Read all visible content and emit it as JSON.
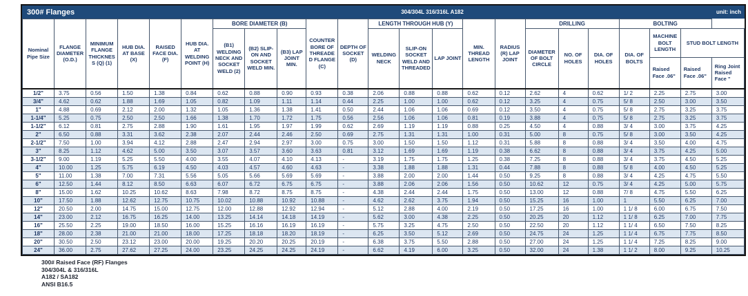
{
  "title_bar": {
    "title": "300# Flanges",
    "material": "304/304L 316/316L A182",
    "unit": "unit: inch"
  },
  "colors": {
    "title_bar_bg": "#1f4a7a",
    "header_text": "#1f3864",
    "row_stripe": "#dce6f1",
    "grid_border": "#44556b"
  },
  "table": {
    "groups": {
      "bore": "BORE DIAMETER (B)",
      "length_hub": "LENGTH THROUGH HUB (Y)",
      "drilling": "DRILLING",
      "bolting": "BOLTING"
    },
    "headers": {
      "pipe": "Nominal Pipe Size",
      "od": "FLANGE DIAMETER (O.D.)",
      "thickness": "MINIMUM FLANGE THICKNESS (Q) (1)",
      "hub_base": "HUB DIA. AT BASE (X)",
      "raised_face": "RAISED FACE DIA. (F)",
      "hub_weld": "HUB DIA. AT WELDING POINT (H)",
      "b1": "(B1) WELDING NECK AND SOCKET WELD (2)",
      "b2": "(B2) SLIP-ON AND SOCKET WELD MIN.",
      "b3": "(B3) LAP JOINT MIN.",
      "counter_bore": "COUNTER BORE OF THREADED FLANGE (C)",
      "depth_socket": "DEPTH OF SOCKET (D)",
      "welding_neck": "WELDING NECK",
      "slip_on": "SLIP-ON SOCKET WELD AND THREADED",
      "lap_joint": "LAP JOINT",
      "min_thread": "MIN. THREAD LENGTH",
      "radius": "RADIUS (R) LAP JOINT",
      "bolt_circle": "DIAMETER OF BOLT CIRCLE",
      "no_holes": "NO. OF HOLES",
      "dia_holes": "DIA. OF HOLES",
      "dia_bolts": "DIA. OF BOLTS",
      "machine_bolt": "MACHINE BOLT LENGTH",
      "stud_bolt": "STUD BOLT LENGTH",
      "machine_raised_face": "Raised Face .06\"",
      "stud_raised_face": "Raised Face .06\"",
      "stud_ring_joint": "Ring Joint Raised Face \""
    },
    "rows": [
      [
        "1/2\"",
        "3.75",
        "0.56",
        "1.50",
        "1.38",
        "0.84",
        "0.62",
        "0.88",
        "0.90",
        "0.93",
        "0.38",
        "2.06",
        "0.88",
        "0.88",
        "0.62",
        "0.12",
        "2.62",
        "4",
        "0.62",
        "1/ 2",
        "2.25",
        "2.75",
        "3.00"
      ],
      [
        "3/4\"",
        "4.62",
        "0.62",
        "1.88",
        "1.69",
        "1.05",
        "0.82",
        "1.09",
        "1.11",
        "1.14",
        "0.44",
        "2.25",
        "1.00",
        "1.00",
        "0.62",
        "0.12",
        "3.25",
        "4",
        "0.75",
        "5/ 8",
        "2.50",
        "3.00",
        "3.50"
      ],
      [
        "1\"",
        "4.88",
        "0.69",
        "2.12",
        "2.00",
        "1.32",
        "1.05",
        "1.36",
        "1.38",
        "1.41",
        "0.50",
        "2.44",
        "1.06",
        "1.06",
        "0.69",
        "0.12",
        "3.50",
        "4",
        "0.75",
        "5/ 8",
        "2.75",
        "3.25",
        "3.75"
      ],
      [
        "1-1/4\"",
        "5.25",
        "0.75",
        "2.50",
        "2.50",
        "1.66",
        "1.38",
        "1.70",
        "1.72",
        "1.75",
        "0.56",
        "2.56",
        "1.06",
        "1.06",
        "0.81",
        "0.19",
        "3.88",
        "4",
        "0.75",
        "5/ 8",
        "2.75",
        "3.25",
        "3.75"
      ],
      [
        "1-1/2\"",
        "6.12",
        "0.81",
        "2.75",
        "2.88",
        "1.90",
        "1.61",
        "1.95",
        "1.97",
        "1.99",
        "0.62",
        "2.69",
        "1.19",
        "1.19",
        "0.88",
        "0.25",
        "4.50",
        "4",
        "0.88",
        "3/ 4",
        "3.00",
        "3.75",
        "4.25"
      ],
      [
        "2\"",
        "6.50",
        "0.88",
        "3.31",
        "3.62",
        "2.38",
        "2.07",
        "2.44",
        "2.46",
        "2.50",
        "0.69",
        "2.75",
        "1.31",
        "1.31",
        "1.00",
        "0.31",
        "5.00",
        "8",
        "0.75",
        "5/ 8",
        "3.00",
        "3.50",
        "4.25"
      ],
      [
        "2-1/2\"",
        "7.50",
        "1.00",
        "3.94",
        "4.12",
        "2.88",
        "2.47",
        "2.94",
        "2.97",
        "3.00",
        "0.75",
        "3.00",
        "1.50",
        "1.50",
        "1.12",
        "0.31",
        "5.88",
        "8",
        "0.88",
        "3/ 4",
        "3.50",
        "4.00",
        "4.75"
      ],
      [
        "3\"",
        "8.25",
        "1.12",
        "4.62",
        "5.00",
        "3.50",
        "3.07",
        "3.57",
        "3.60",
        "3.63",
        "0.81",
        "3.12",
        "1.69",
        "1.69",
        "1.19",
        "0.38",
        "6.62",
        "8",
        "0.88",
        "3/ 4",
        "3.75",
        "4.25",
        "5.00"
      ],
      [
        "3-1/2\"",
        "9.00",
        "1.19",
        "5.25",
        "5.50",
        "4.00",
        "3.55",
        "4.07",
        "4.10",
        "4.13",
        "-",
        "3.19",
        "1.75",
        "1.75",
        "1.25",
        "0.38",
        "7.25",
        "8",
        "0.88",
        "3/ 4",
        "3.75",
        "4.50",
        "5.25"
      ],
      [
        "4\"",
        "10.00",
        "1.25",
        "5.75",
        "6.19",
        "4.50",
        "4.03",
        "4.57",
        "4.60",
        "4.63",
        "-",
        "3.38",
        "1.88",
        "1.88",
        "1.31",
        "0.44",
        "7.88",
        "8",
        "0.88",
        "5/ 8",
        "4.00",
        "4.50",
        "5.25"
      ],
      [
        "5\"",
        "11.00",
        "1.38",
        "7.00",
        "7.31",
        "5.56",
        "5.05",
        "5.66",
        "5.69",
        "5.69",
        "-",
        "3.88",
        "2.00",
        "2.00",
        "1.44",
        "0.50",
        "9.25",
        "8",
        "0.88",
        "3/ 4",
        "4.25",
        "4.75",
        "5.50"
      ],
      [
        "6\"",
        "12.50",
        "1.44",
        "8.12",
        "8.50",
        "6.63",
        "6.07",
        "6.72",
        "6.75",
        "6.75",
        "-",
        "3.88",
        "2.06",
        "2.06",
        "1.56",
        "0.50",
        "10.62",
        "12",
        "0.75",
        "3/ 4",
        "4.25",
        "5.00",
        "5.75"
      ],
      [
        "8\"",
        "15.00",
        "1.62",
        "10.25",
        "10.62",
        "8.63",
        "7.98",
        "8.72",
        "8.75",
        "8.75",
        "-",
        "4.38",
        "2.44",
        "2.44",
        "1.75",
        "0.50",
        "13.00",
        "12",
        "0.88",
        "7/ 8",
        "4.75",
        "5.50",
        "6.25"
      ],
      [
        "10\"",
        "17.50",
        "1.88",
        "12.62",
        "12.75",
        "10.75",
        "10.02",
        "10.88",
        "10.92",
        "10.88",
        "-",
        "4.62",
        "2.62",
        "3.75",
        "1.94",
        "0.50",
        "15.25",
        "16",
        "1.00",
        "1",
        "5.50",
        "6.25",
        "7.00"
      ],
      [
        "12\"",
        "20.50",
        "2.00",
        "14.75",
        "15.00",
        "12.75",
        "12.00",
        "12.88",
        "12.92",
        "12.94",
        "-",
        "5.12",
        "2.88",
        "4.00",
        "2.19",
        "0.50",
        "17.25",
        "16",
        "1.00",
        "1 1/ 8",
        "6.00",
        "6.75",
        "7.50"
      ],
      [
        "14\"",
        "23.00",
        "2.12",
        "16.75",
        "16.25",
        "14.00",
        "13.25",
        "14.14",
        "14.18",
        "14.19",
        "-",
        "5.62",
        "3.00",
        "4.38",
        "2.25",
        "0.50",
        "20.25",
        "20",
        "1.12",
        "1 1/ 8",
        "6.25",
        "7.00",
        "7.75"
      ],
      [
        "16\"",
        "25.50",
        "2.25",
        "19.00",
        "18.50",
        "16.00",
        "15.25",
        "16.16",
        "16.19",
        "16.19",
        "-",
        "5.75",
        "3.25",
        "4.75",
        "2.50",
        "0.50",
        "22.50",
        "20",
        "1.12",
        "1 1/ 4",
        "6.50",
        "7.50",
        "8.25"
      ],
      [
        "18\"",
        "28.00",
        "2.38",
        "21.00",
        "21.00",
        "18.00",
        "17.25",
        "18.18",
        "18.20",
        "18.19",
        "-",
        "6.25",
        "3.50",
        "5.12",
        "2.69",
        "0.50",
        "24.75",
        "24",
        "1.25",
        "1 1/ 4",
        "6.75",
        "7.75",
        "8.50"
      ],
      [
        "20\"",
        "30.50",
        "2.50",
        "23.12",
        "23.00",
        "20.00",
        "19.25",
        "20.20",
        "20.25",
        "20.19",
        "-",
        "6.38",
        "3.75",
        "5.50",
        "2.88",
        "0.50",
        "27.00",
        "24",
        "1.25",
        "1 1/ 4",
        "7.25",
        "8.25",
        "9.00"
      ],
      [
        "24\"",
        "36.00",
        "2.75",
        "27.62",
        "27.25",
        "24.00",
        "23.25",
        "24.25",
        "24.25",
        "24.19",
        "-",
        "6.62",
        "4.19",
        "6.00",
        "3.25",
        "0.50",
        "32.00",
        "24",
        "1.38",
        "1 1/ 2",
        "8.00",
        "9.25",
        "10.25"
      ]
    ]
  },
  "footer": {
    "lines": [
      "300# Raised Face (RF) Flanges",
      "304/304L & 316/316L",
      "A182 / SA182",
      "ANSI B16.5"
    ]
  }
}
